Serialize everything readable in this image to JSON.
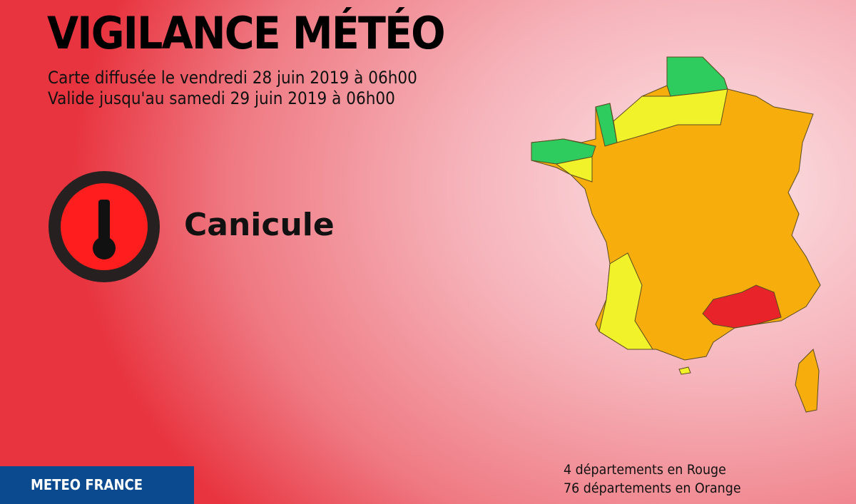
{
  "header": {
    "title": "VIGILANCE MÉTÉO",
    "issued": "Carte diffusée le vendredi 28 juin 2019 à 06h00",
    "valid_until": "Valide jusqu'au samedi 29 juin 2019 à 06h00"
  },
  "hazard": {
    "label": "Canicule",
    "icon": "thermometer-icon",
    "level_color": "#ff1d1d"
  },
  "footer": {
    "brand": "METEO FRANCE",
    "red_count": "4 départements en Rouge",
    "orange_count": "76 départements en Orange"
  },
  "map_colors": {
    "green": "#2ecc5e",
    "yellow": "#f2f22a",
    "orange": "#f7ae0c",
    "red": "#e8232a"
  }
}
